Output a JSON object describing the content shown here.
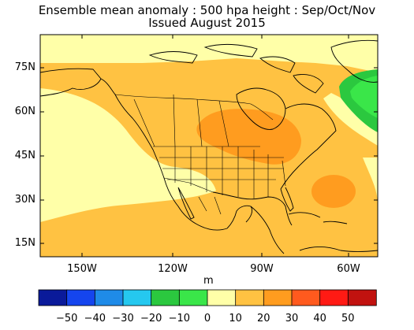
{
  "header": {
    "title_line1": "Ensemble mean anomaly : 500 hpa height : Sep/Oct/Nov",
    "title_line2": "Issued August 2015"
  },
  "axes": {
    "lat_labels": [
      "75N",
      "60N",
      "45N",
      "30N",
      "15N"
    ],
    "lon_labels": [
      "150W",
      "120W",
      "90W",
      "60W"
    ],
    "lon_range": [
      -170,
      -50
    ],
    "lat_range": [
      5,
      85
    ]
  },
  "colorbar": {
    "unit": "m",
    "tick_labels": [
      "-50",
      "-40",
      "-30",
      "-20",
      "-10",
      "0",
      "10",
      "20",
      "30",
      "40",
      "50"
    ],
    "colors": [
      "#0a1a9a",
      "#1545ee",
      "#1f8be8",
      "#25c8ef",
      "#2bc83f",
      "#3ae649",
      "#ffffa8",
      "#ffc242",
      "#ff9c1f",
      "#ff5a1e",
      "#ff1a14",
      "#c1120f"
    ]
  },
  "colors": {
    "anomaly_0_10": "#ffffa8",
    "anomaly_10_20": "#ffc242",
    "anomaly_20_30": "#ff9c1f",
    "anomaly_neg_10_0": "#3ae649",
    "anomaly_neg_20_neg_10": "#2bc83f"
  }
}
